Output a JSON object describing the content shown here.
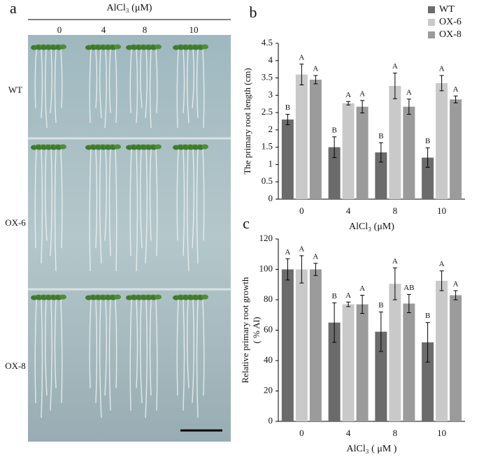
{
  "photo_panel": {
    "letter": "a",
    "header": "AlCl₃ (μM)",
    "columns": [
      "0",
      "4",
      "8",
      "10"
    ],
    "rows": [
      "WT",
      "OX-6",
      "OX-8"
    ]
  },
  "chart_data": [
    {
      "type": "bar",
      "panel_label": "b",
      "ylabel": "The primary root length (cm)",
      "xlabel": "AlCl₃ (μM)",
      "categories": [
        "0",
        "4",
        "8",
        "10"
      ],
      "ylim": [
        0,
        4.5
      ],
      "yticks": [
        0,
        0.5,
        1,
        1.5,
        2,
        2.5,
        3,
        3.5,
        4,
        4.5
      ],
      "legend": "upper right",
      "series": [
        {
          "name": "WT",
          "color": "#6b6b6b",
          "values": [
            2.3,
            1.5,
            1.35,
            1.2
          ],
          "errors": [
            0.15,
            0.3,
            0.28,
            0.28
          ],
          "letters": [
            "B",
            "B",
            "B",
            "B"
          ]
        },
        {
          "name": "OX-6",
          "color": "#c9c9c9",
          "values": [
            3.6,
            2.77,
            3.27,
            3.35
          ],
          "errors": [
            0.3,
            0.05,
            0.37,
            0.22
          ],
          "letters": [
            "A",
            "A",
            "A",
            "A"
          ]
        },
        {
          "name": "OX-8",
          "color": "#9b9b9b",
          "values": [
            3.45,
            2.67,
            2.67,
            2.88
          ],
          "errors": [
            0.12,
            0.18,
            0.22,
            0.1
          ],
          "letters": [
            "A",
            "A",
            "A",
            "A"
          ]
        }
      ]
    },
    {
      "type": "bar",
      "panel_label": "c",
      "ylabel": [
        "Relative primary root growth",
        "( % Al)"
      ],
      "xlabel": "AlCl₃ ( μM )",
      "categories": [
        "0",
        "4",
        "8",
        "10"
      ],
      "ylim": [
        0,
        120
      ],
      "yticks": [
        0,
        20,
        40,
        60,
        80,
        100,
        120
      ],
      "series": [
        {
          "color": "#6b6b6b",
          "values": [
            100,
            65,
            59,
            52
          ],
          "errors": [
            7,
            13,
            13,
            13
          ],
          "letters": [
            "A",
            "B",
            "B",
            "B"
          ]
        },
        {
          "color": "#c9c9c9",
          "values": [
            100,
            77,
            90.5,
            92.5
          ],
          "errors": [
            9,
            1.5,
            10.5,
            6.5
          ],
          "letters": [
            "A",
            "A",
            "A",
            "A"
          ]
        },
        {
          "color": "#9b9b9b",
          "values": [
            100,
            77,
            77.5,
            83
          ],
          "errors": [
            4,
            6,
            6,
            3
          ],
          "letters": [
            "A",
            "A",
            "AB",
            "A"
          ]
        }
      ]
    }
  ]
}
